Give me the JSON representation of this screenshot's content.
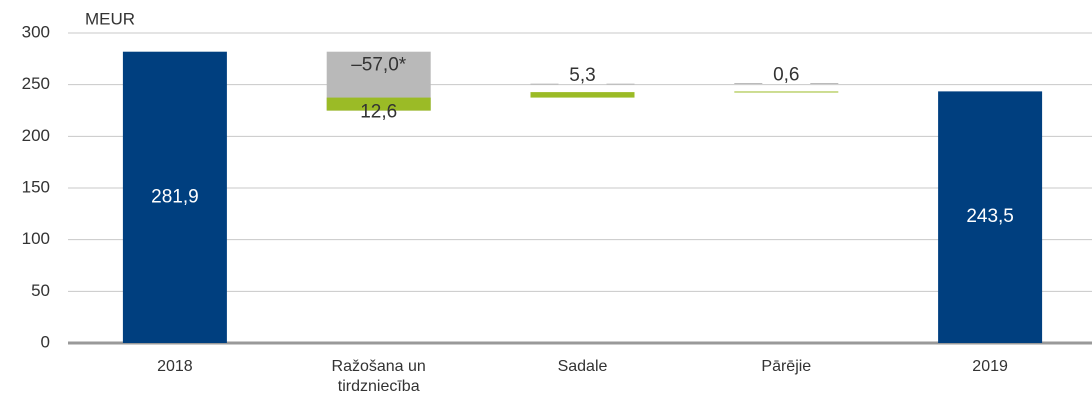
{
  "chart_data": {
    "type": "waterfall",
    "y_axis_label": "MEUR",
    "categories": [
      "2018",
      "Ražošana un tirdzniecība",
      "Sadale",
      "Pārējie",
      "2019"
    ],
    "values": [
      [
        281.9
      ],
      [
        -57.0,
        12.6
      ],
      [
        5.3
      ],
      [
        0.6
      ],
      [
        243.5
      ]
    ],
    "value_labels": [
      [
        "281,9"
      ],
      [
        "–57,0*",
        "12,6"
      ],
      [
        "5,3"
      ],
      [
        "0,6"
      ],
      [
        "243,5"
      ]
    ],
    "colors": [
      [
        "#003f7f"
      ],
      [
        "#b9b9b9",
        "#9bbb26"
      ],
      [
        "#9bbb26"
      ],
      [
        "#9bbb26"
      ],
      [
        "#003f7f"
      ]
    ],
    "totals": [
      true,
      false,
      false,
      false,
      true
    ],
    "ylim": [
      0,
      300
    ],
    "yticks": [
      0,
      50,
      100,
      150,
      200,
      250,
      300
    ],
    "grid": true
  }
}
